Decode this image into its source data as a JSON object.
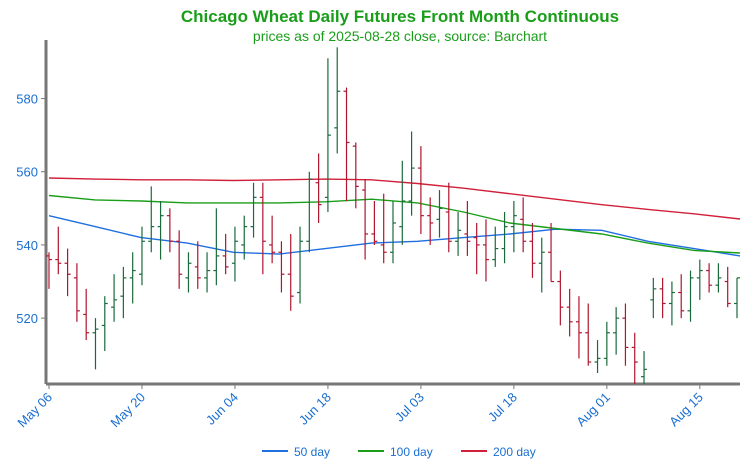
{
  "chart_data": {
    "type": "ohlc",
    "title": "Chicago Wheat Daily Futures Front Month Continuous",
    "subtitle": "prices as of 2025-08-28 close, source: Barchart",
    "ylim": [
      502,
      596
    ],
    "yticks": [
      520,
      540,
      560,
      580
    ],
    "xtick_labels": [
      "May 06",
      "May 20",
      "Jun 04",
      "Jun 18",
      "Jul 03",
      "Jul 18",
      "Aug 01",
      "Aug 15"
    ],
    "xtick_index": [
      0,
      10,
      20,
      30,
      40,
      50,
      60,
      70
    ],
    "up_color": "#1a6b3c",
    "down_color": "#b0152e",
    "text_color": "#1a6fd1",
    "ohlc": [
      [
        537,
        538,
        528,
        536
      ],
      [
        536,
        545,
        532,
        535
      ],
      [
        535,
        539,
        526,
        532
      ],
      [
        531,
        535,
        519,
        522
      ],
      [
        521,
        528,
        514,
        516
      ],
      [
        516,
        520,
        506,
        517
      ],
      [
        518,
        526,
        511,
        524
      ],
      [
        523,
        532,
        519,
        525
      ],
      [
        526,
        534,
        520,
        531
      ],
      [
        531,
        538,
        524,
        533
      ],
      [
        532,
        545,
        529,
        541
      ],
      [
        541,
        556,
        538,
        545
      ],
      [
        545,
        552,
        536,
        548
      ],
      [
        548,
        550,
        538,
        541
      ],
      [
        541,
        544,
        528,
        532
      ],
      [
        531,
        538,
        527,
        535
      ],
      [
        534,
        541,
        528,
        531
      ],
      [
        531,
        538,
        527,
        533
      ],
      [
        533,
        550,
        529,
        537
      ],
      [
        537,
        543,
        532,
        534
      ],
      [
        535,
        545,
        530,
        541
      ],
      [
        540,
        548,
        536,
        545
      ],
      [
        545,
        557,
        542,
        553
      ],
      [
        553,
        557,
        532,
        541
      ],
      [
        540,
        548,
        535,
        538
      ],
      [
        538,
        541,
        527,
        532
      ],
      [
        532,
        543,
        522,
        526
      ],
      [
        527,
        545,
        524,
        541
      ],
      [
        541,
        560,
        538,
        558
      ],
      [
        557,
        565,
        546,
        551
      ],
      [
        553,
        591,
        549,
        570
      ],
      [
        572,
        594,
        565,
        582
      ],
      [
        582,
        583,
        552,
        568
      ],
      [
        567,
        568,
        550,
        556
      ],
      [
        555,
        558,
        536,
        543
      ],
      [
        543,
        552,
        540,
        541
      ],
      [
        540,
        554,
        535,
        538
      ],
      [
        538,
        552,
        535,
        546
      ],
      [
        545,
        563,
        540,
        552
      ],
      [
        552,
        571,
        548,
        561
      ],
      [
        561,
        567,
        543,
        548
      ],
      [
        548,
        553,
        540,
        546
      ],
      [
        547,
        555,
        542,
        550
      ],
      [
        549,
        557,
        538,
        541
      ],
      [
        541,
        549,
        537,
        544
      ],
      [
        543,
        552,
        537,
        541
      ],
      [
        542,
        546,
        532,
        540
      ],
      [
        540,
        547,
        530,
        536
      ],
      [
        536,
        545,
        534,
        539
      ],
      [
        539,
        549,
        535,
        545
      ],
      [
        545,
        552,
        538,
        548
      ],
      [
        547,
        553,
        538,
        541
      ],
      [
        541,
        546,
        531,
        535
      ],
      [
        535,
        542,
        527,
        538
      ],
      [
        538,
        546,
        530,
        530
      ],
      [
        530,
        533,
        518,
        523
      ],
      [
        523,
        528,
        515,
        519
      ],
      [
        519,
        526,
        509,
        516
      ],
      [
        516,
        524,
        507,
        508
      ],
      [
        508,
        514,
        505,
        509
      ],
      [
        509,
        519,
        507,
        516
      ],
      [
        516,
        523,
        510,
        520
      ],
      [
        520,
        524,
        507,
        512
      ],
      [
        512,
        516,
        502,
        508
      ],
      [
        504,
        511,
        502,
        506
      ],
      [
        525,
        531,
        520,
        528
      ],
      [
        528,
        531,
        520,
        524
      ],
      [
        524,
        530,
        518,
        527
      ],
      [
        527,
        532,
        520,
        522
      ],
      [
        522,
        533,
        519,
        531
      ],
      [
        531,
        536,
        525,
        533
      ],
      [
        533,
        535,
        527,
        529
      ],
      [
        529,
        535,
        527,
        531
      ],
      [
        530,
        534,
        523,
        524
      ],
      [
        524,
        531,
        520,
        531
      ]
    ],
    "series": [
      {
        "name": "50 day",
        "color": "#1f6fe0",
        "values": [
          [
            0,
            548
          ],
          [
            5,
            545
          ],
          [
            10,
            542
          ],
          [
            15,
            540.5
          ],
          [
            20,
            538
          ],
          [
            25,
            537.5
          ],
          [
            30,
            539
          ],
          [
            35,
            540.5
          ],
          [
            40,
            541
          ],
          [
            45,
            542
          ],
          [
            50,
            543
          ],
          [
            55,
            544.3
          ],
          [
            60,
            544
          ],
          [
            65,
            541
          ],
          [
            70,
            539
          ],
          [
            75,
            537
          ]
        ]
      },
      {
        "name": "100 day",
        "color": "#1a9e1a",
        "values": [
          [
            0,
            553.5
          ],
          [
            5,
            552.3
          ],
          [
            10,
            552
          ],
          [
            15,
            551.5
          ],
          [
            20,
            551.5
          ],
          [
            25,
            551.5
          ],
          [
            30,
            551.8
          ],
          [
            35,
            552.5
          ],
          [
            40,
            551.5
          ],
          [
            45,
            549
          ],
          [
            50,
            546
          ],
          [
            55,
            544.5
          ],
          [
            60,
            543
          ],
          [
            65,
            540.5
          ],
          [
            70,
            538.5
          ],
          [
            75,
            537.8
          ]
        ]
      },
      {
        "name": "200 day",
        "color": "#d0203a",
        "values": [
          [
            0,
            558.3
          ],
          [
            5,
            558
          ],
          [
            10,
            557.8
          ],
          [
            15,
            557.8
          ],
          [
            20,
            557.6
          ],
          [
            25,
            557.8
          ],
          [
            30,
            558
          ],
          [
            35,
            557.8
          ],
          [
            40,
            556.8
          ],
          [
            45,
            555.5
          ],
          [
            50,
            554
          ],
          [
            55,
            552.5
          ],
          [
            60,
            551
          ],
          [
            65,
            549.7
          ],
          [
            70,
            548.5
          ],
          [
            75,
            547.1
          ]
        ]
      }
    ],
    "legend_position": "bottom-center"
  }
}
